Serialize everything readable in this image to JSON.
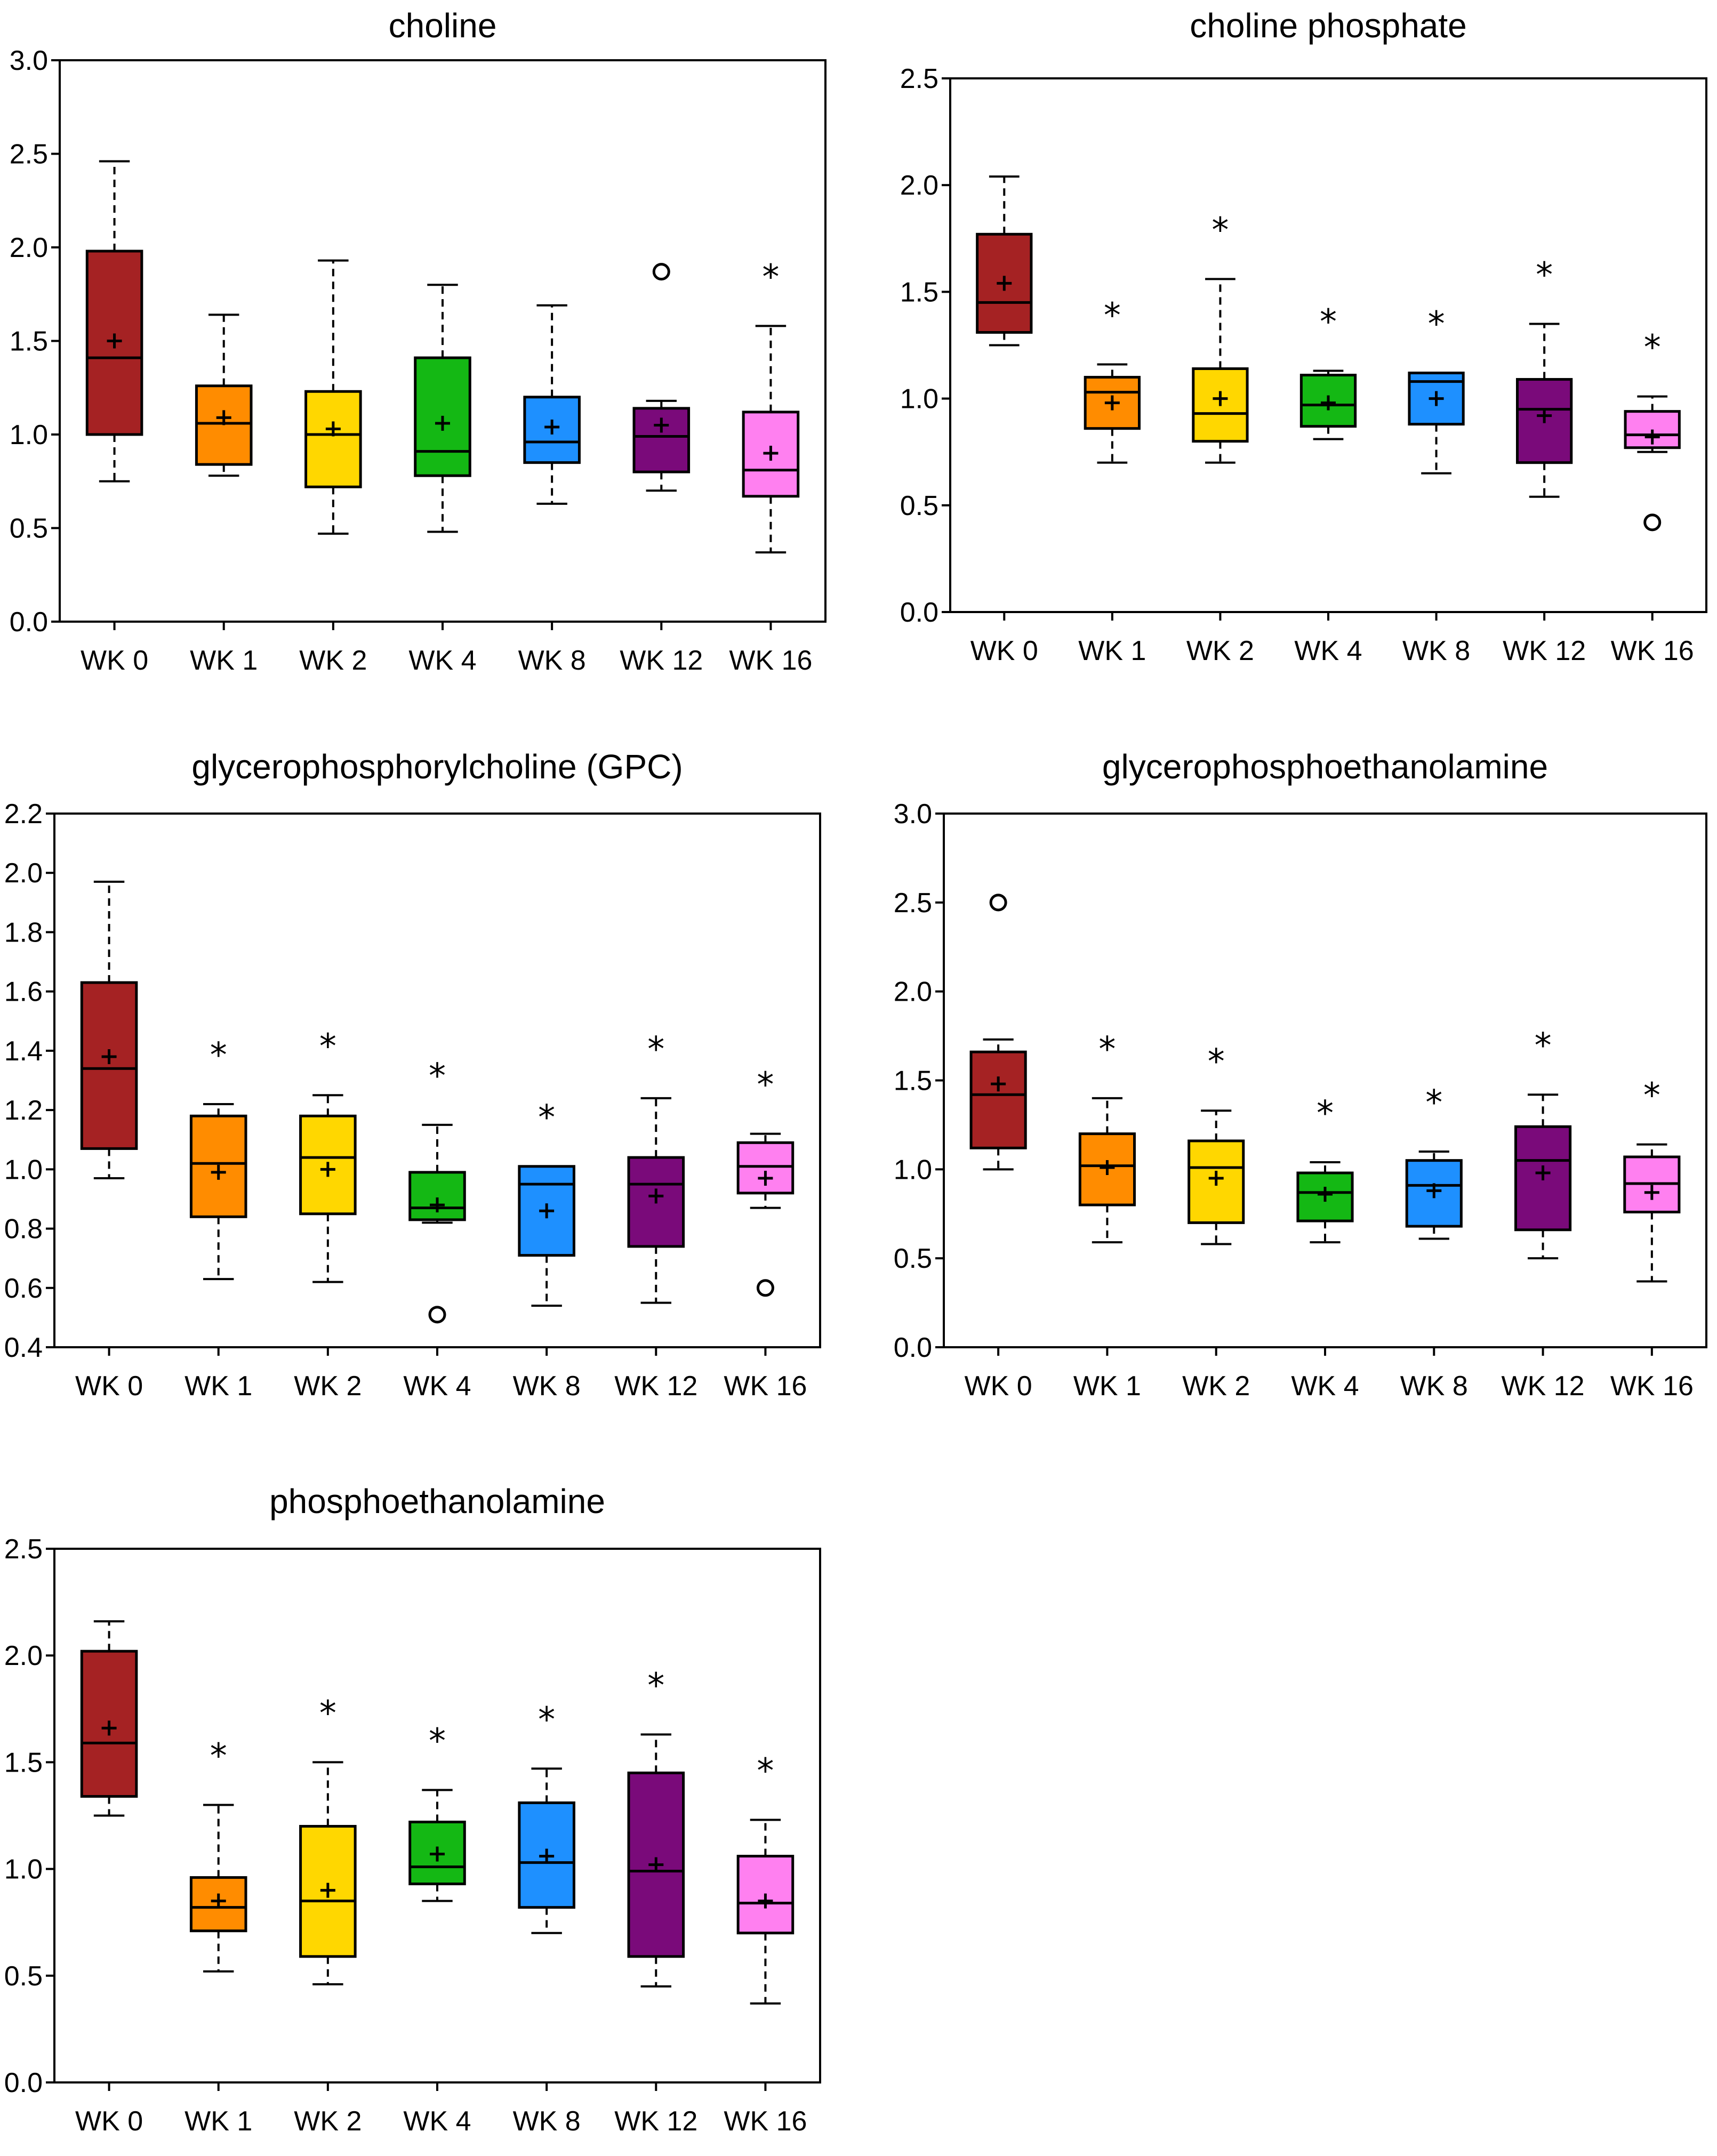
{
  "colors": [
    "#a52223",
    "#ff8c00",
    "#ffd700",
    "#14b814",
    "#1e90ff",
    "#7a0a7a",
    "#ff80f0"
  ],
  "chart_data": [
    {
      "type": "box",
      "title": "choline",
      "categories": [
        "WK 0",
        "WK 1",
        "WK 2",
        "WK 4",
        "WK 8",
        "WK 12",
        "WK 16"
      ],
      "ylim": [
        0.0,
        3.0
      ],
      "yticks": [
        0.0,
        0.5,
        1.0,
        1.5,
        2.0,
        2.5,
        3.0
      ],
      "ytick_labels": [
        "0.0",
        "0.5",
        "1.0",
        "1.5",
        "2.0",
        "2.5",
        "3.0"
      ],
      "boxes": [
        {
          "whisker_low": 0.75,
          "q1": 1.0,
          "median": 1.41,
          "q3": 1.98,
          "whisker_high": 2.46,
          "mean": 1.5,
          "outliers": [],
          "significant": false
        },
        {
          "whisker_low": 0.78,
          "q1": 0.84,
          "median": 1.06,
          "q3": 1.26,
          "whisker_high": 1.64,
          "mean": 1.09,
          "outliers": [],
          "significant": false
        },
        {
          "whisker_low": 0.47,
          "q1": 0.72,
          "median": 1.0,
          "q3": 1.23,
          "whisker_high": 1.93,
          "mean": 1.03,
          "outliers": [],
          "significant": false
        },
        {
          "whisker_low": 0.48,
          "q1": 0.78,
          "median": 0.91,
          "q3": 1.41,
          "whisker_high": 1.8,
          "mean": 1.06,
          "outliers": [],
          "significant": false
        },
        {
          "whisker_low": 0.63,
          "q1": 0.85,
          "median": 0.96,
          "q3": 1.2,
          "whisker_high": 1.69,
          "mean": 1.04,
          "outliers": [],
          "significant": false
        },
        {
          "whisker_low": 0.7,
          "q1": 0.8,
          "median": 0.99,
          "q3": 1.14,
          "whisker_high": 1.18,
          "mean": 1.05,
          "outliers": [
            1.87
          ],
          "significant": false
        },
        {
          "whisker_low": 0.37,
          "q1": 0.67,
          "median": 0.81,
          "q3": 1.12,
          "whisker_high": 1.58,
          "mean": 0.9,
          "outliers": [],
          "significant": true
        }
      ]
    },
    {
      "type": "box",
      "title": "choline phosphate",
      "categories": [
        "WK 0",
        "WK 1",
        "WK 2",
        "WK 4",
        "WK 8",
        "WK 12",
        "WK 16"
      ],
      "ylim": [
        0.0,
        2.5
      ],
      "yticks": [
        0.0,
        0.5,
        1.0,
        1.5,
        2.0,
        2.5
      ],
      "ytick_labels": [
        "0.0",
        "0.5",
        "1.0",
        "1.5",
        "2.0",
        "2.5"
      ],
      "boxes": [
        {
          "whisker_low": 1.25,
          "q1": 1.31,
          "median": 1.45,
          "q3": 1.77,
          "whisker_high": 2.04,
          "mean": 1.54,
          "outliers": [],
          "significant": false
        },
        {
          "whisker_low": 0.7,
          "q1": 0.86,
          "median": 1.03,
          "q3": 1.1,
          "whisker_high": 1.16,
          "mean": 0.98,
          "outliers": [],
          "significant": true
        },
        {
          "whisker_low": 0.7,
          "q1": 0.8,
          "median": 0.93,
          "q3": 1.14,
          "whisker_high": 1.56,
          "mean": 1.0,
          "outliers": [],
          "significant": true
        },
        {
          "whisker_low": 0.81,
          "q1": 0.87,
          "median": 0.97,
          "q3": 1.11,
          "whisker_high": 1.13,
          "mean": 0.98,
          "outliers": [],
          "significant": true
        },
        {
          "whisker_low": 0.65,
          "q1": 0.88,
          "median": 1.08,
          "q3": 1.12,
          "whisker_high": 1.12,
          "mean": 1.0,
          "outliers": [],
          "significant": true
        },
        {
          "whisker_low": 0.54,
          "q1": 0.7,
          "median": 0.95,
          "q3": 1.09,
          "whisker_high": 1.35,
          "mean": 0.92,
          "outliers": [],
          "significant": true
        },
        {
          "whisker_low": 0.75,
          "q1": 0.77,
          "median": 0.83,
          "q3": 0.94,
          "whisker_high": 1.01,
          "mean": 0.82,
          "outliers": [
            0.42
          ],
          "significant": true
        }
      ]
    },
    {
      "type": "box",
      "title": "glycerophosphorylcholine (GPC)",
      "categories": [
        "WK 0",
        "WK 1",
        "WK 2",
        "WK 4",
        "WK 8",
        "WK 12",
        "WK 16"
      ],
      "ylim": [
        0.4,
        2.2
      ],
      "yticks": [
        0.4,
        0.6,
        0.8,
        1.0,
        1.2,
        1.4,
        1.6,
        1.8,
        2.0,
        2.2
      ],
      "ytick_labels": [
        "0.4",
        "0.6",
        "0.8",
        "1.0",
        "1.2",
        "1.4",
        "1.6",
        "1.8",
        "2.0",
        "2.2"
      ],
      "boxes": [
        {
          "whisker_low": 0.97,
          "q1": 1.07,
          "median": 1.34,
          "q3": 1.63,
          "whisker_high": 1.97,
          "mean": 1.38,
          "outliers": [],
          "significant": false
        },
        {
          "whisker_low": 0.63,
          "q1": 0.84,
          "median": 1.02,
          "q3": 1.18,
          "whisker_high": 1.22,
          "mean": 0.99,
          "outliers": [],
          "significant": true
        },
        {
          "whisker_low": 0.62,
          "q1": 0.85,
          "median": 1.04,
          "q3": 1.18,
          "whisker_high": 1.25,
          "mean": 1.0,
          "outliers": [],
          "significant": true
        },
        {
          "whisker_low": 0.82,
          "q1": 0.83,
          "median": 0.87,
          "q3": 0.99,
          "whisker_high": 1.15,
          "mean": 0.88,
          "outliers": [
            0.51
          ],
          "significant": true
        },
        {
          "whisker_low": 0.54,
          "q1": 0.71,
          "median": 0.95,
          "q3": 1.01,
          "whisker_high": 1.01,
          "mean": 0.86,
          "outliers": [],
          "significant": true
        },
        {
          "whisker_low": 0.55,
          "q1": 0.74,
          "median": 0.95,
          "q3": 1.04,
          "whisker_high": 1.24,
          "mean": 0.91,
          "outliers": [],
          "significant": true
        },
        {
          "whisker_low": 0.87,
          "q1": 0.92,
          "median": 1.01,
          "q3": 1.09,
          "whisker_high": 1.12,
          "mean": 0.97,
          "outliers": [
            0.6
          ],
          "significant": true
        }
      ]
    },
    {
      "type": "box",
      "title": "glycerophosphoethanolamine",
      "categories": [
        "WK 0",
        "WK 1",
        "WK 2",
        "WK 4",
        "WK 8",
        "WK 12",
        "WK 16"
      ],
      "ylim": [
        0.0,
        3.0
      ],
      "yticks": [
        0.0,
        0.5,
        1.0,
        1.5,
        2.0,
        2.5,
        3.0
      ],
      "ytick_labels": [
        "0.0",
        "0.5",
        "1.0",
        "1.5",
        "2.0",
        "2.5",
        "3.0"
      ],
      "boxes": [
        {
          "whisker_low": 1.0,
          "q1": 1.12,
          "median": 1.42,
          "q3": 1.66,
          "whisker_high": 1.73,
          "mean": 1.48,
          "outliers": [
            2.5
          ],
          "significant": false
        },
        {
          "whisker_low": 0.59,
          "q1": 0.8,
          "median": 1.02,
          "q3": 1.2,
          "whisker_high": 1.4,
          "mean": 1.01,
          "outliers": [],
          "significant": true
        },
        {
          "whisker_low": 0.58,
          "q1": 0.7,
          "median": 1.01,
          "q3": 1.16,
          "whisker_high": 1.33,
          "mean": 0.95,
          "outliers": [],
          "significant": true
        },
        {
          "whisker_low": 0.59,
          "q1": 0.71,
          "median": 0.87,
          "q3": 0.98,
          "whisker_high": 1.04,
          "mean": 0.86,
          "outliers": [],
          "significant": true
        },
        {
          "whisker_low": 0.61,
          "q1": 0.68,
          "median": 0.91,
          "q3": 1.05,
          "whisker_high": 1.1,
          "mean": 0.88,
          "outliers": [],
          "significant": true
        },
        {
          "whisker_low": 0.5,
          "q1": 0.66,
          "median": 1.05,
          "q3": 1.24,
          "whisker_high": 1.42,
          "mean": 0.98,
          "outliers": [],
          "significant": true
        },
        {
          "whisker_low": 0.37,
          "q1": 0.76,
          "median": 0.92,
          "q3": 1.07,
          "whisker_high": 1.14,
          "mean": 0.87,
          "outliers": [],
          "significant": true
        }
      ]
    },
    {
      "type": "box",
      "title": "phosphoethanolamine",
      "categories": [
        "WK 0",
        "WK 1",
        "WK 2",
        "WK 4",
        "WK 8",
        "WK 12",
        "WK 16"
      ],
      "ylim": [
        0.0,
        2.5
      ],
      "yticks": [
        0.0,
        0.5,
        1.0,
        1.5,
        2.0,
        2.5
      ],
      "ytick_labels": [
        "0.0",
        "0.5",
        "1.0",
        "1.5",
        "2.0",
        "2.5"
      ],
      "boxes": [
        {
          "whisker_low": 1.25,
          "q1": 1.34,
          "median": 1.59,
          "q3": 2.02,
          "whisker_high": 2.16,
          "mean": 1.66,
          "outliers": [],
          "significant": false
        },
        {
          "whisker_low": 0.52,
          "q1": 0.71,
          "median": 0.82,
          "q3": 0.96,
          "whisker_high": 1.3,
          "mean": 0.85,
          "outliers": [],
          "significant": true
        },
        {
          "whisker_low": 0.46,
          "q1": 0.59,
          "median": 0.85,
          "q3": 1.2,
          "whisker_high": 1.5,
          "mean": 0.9,
          "outliers": [],
          "significant": true
        },
        {
          "whisker_low": 0.85,
          "q1": 0.93,
          "median": 1.01,
          "q3": 1.22,
          "whisker_high": 1.37,
          "mean": 1.07,
          "outliers": [],
          "significant": true
        },
        {
          "whisker_low": 0.7,
          "q1": 0.82,
          "median": 1.03,
          "q3": 1.31,
          "whisker_high": 1.47,
          "mean": 1.06,
          "outliers": [],
          "significant": true
        },
        {
          "whisker_low": 0.45,
          "q1": 0.59,
          "median": 0.99,
          "q3": 1.45,
          "whisker_high": 1.63,
          "mean": 1.02,
          "outliers": [],
          "significant": true
        },
        {
          "whisker_low": 0.37,
          "q1": 0.7,
          "median": 0.84,
          "q3": 1.06,
          "whisker_high": 1.23,
          "mean": 0.85,
          "outliers": [],
          "significant": true
        }
      ]
    }
  ]
}
